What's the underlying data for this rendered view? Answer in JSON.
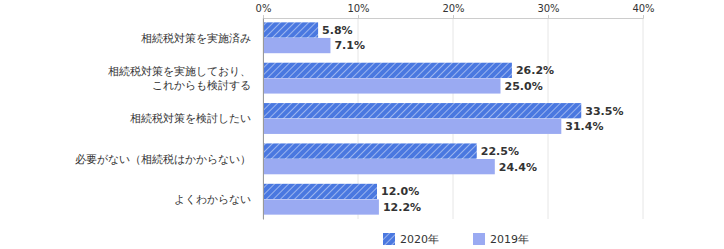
{
  "chart_data": {
    "type": "bar",
    "orientation": "horizontal",
    "categories": [
      "相続税対策を実施済み",
      "相続税対策を実施しており、\nこれからも検討する",
      "相続税対策を検討したい",
      "必要がない（相続税はかからない）",
      "よくわからない"
    ],
    "series": [
      {
        "name": "2020年",
        "color": "#4a78e0",
        "values": [
          5.8,
          26.2,
          33.5,
          22.5,
          12.0
        ],
        "value_labels": [
          "5.8%",
          "26.2%",
          "33.5%",
          "22.5%",
          "12.0%"
        ]
      },
      {
        "name": "2019年",
        "color": "#9aaaf2",
        "values": [
          7.1,
          25.0,
          31.4,
          24.4,
          12.2
        ],
        "value_labels": [
          "7.1%",
          "25.0%",
          "31.4%",
          "24.4%",
          "12.2%"
        ]
      }
    ],
    "xlim": [
      0,
      40
    ],
    "xticks": [
      {
        "value": 0,
        "label": "0%"
      },
      {
        "value": 10,
        "label": "10%"
      },
      {
        "value": 20,
        "label": "20%"
      },
      {
        "value": 30,
        "label": "30%"
      },
      {
        "value": 40,
        "label": "40%"
      }
    ],
    "grid": true,
    "data_labels": true,
    "legend": "bottom"
  }
}
